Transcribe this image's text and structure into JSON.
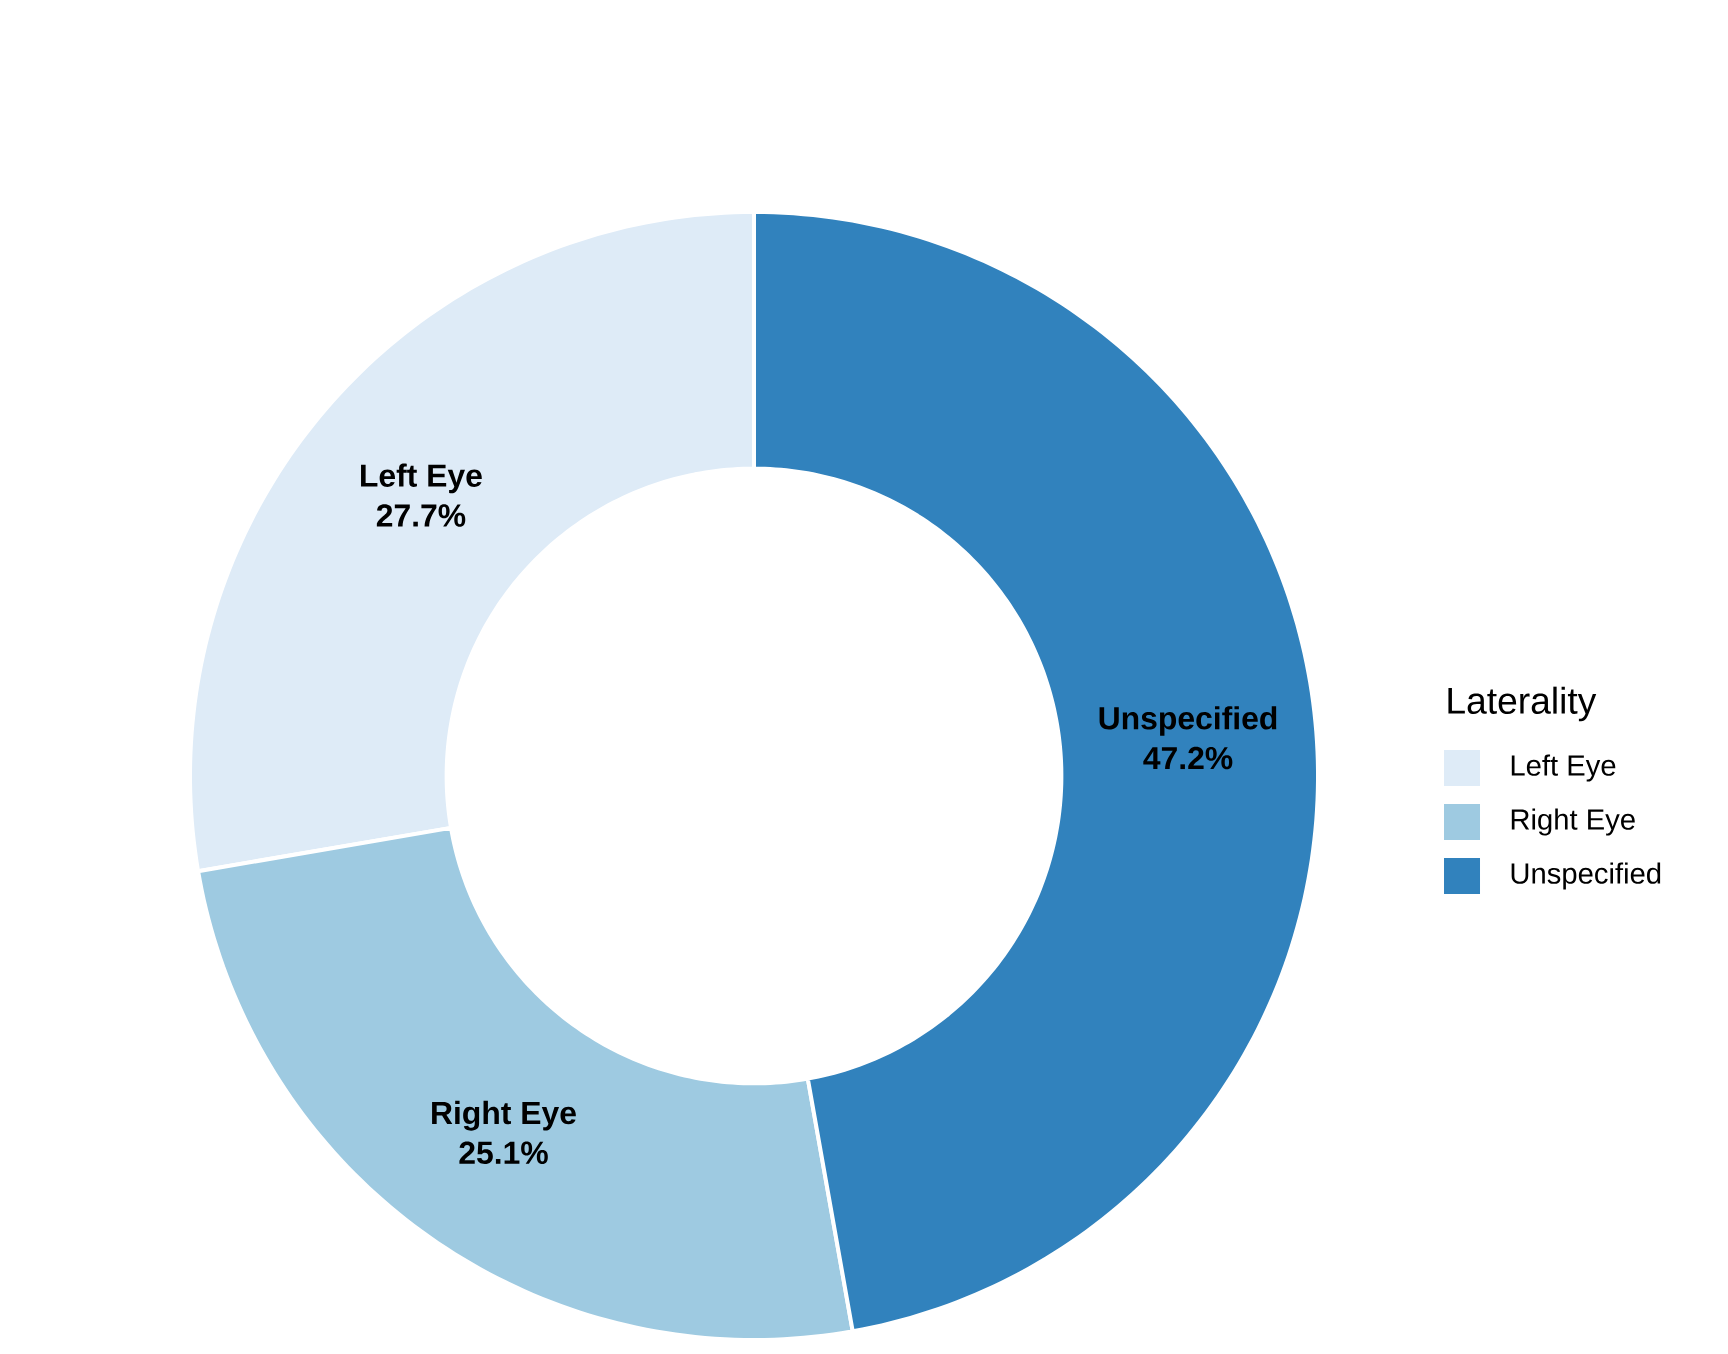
{
  "chart_data": {
    "type": "donut",
    "categories": [
      "Left Eye",
      "Right Eye",
      "Unspecified"
    ],
    "values": [
      27.7,
      25.1,
      47.2
    ],
    "colors": [
      "#deebf7",
      "#9ecae1",
      "#3182bd"
    ],
    "legend_title": "Laterality",
    "legend": "right",
    "value_labels": [
      "27.7%",
      "25.1%",
      "47.2%"
    ]
  }
}
